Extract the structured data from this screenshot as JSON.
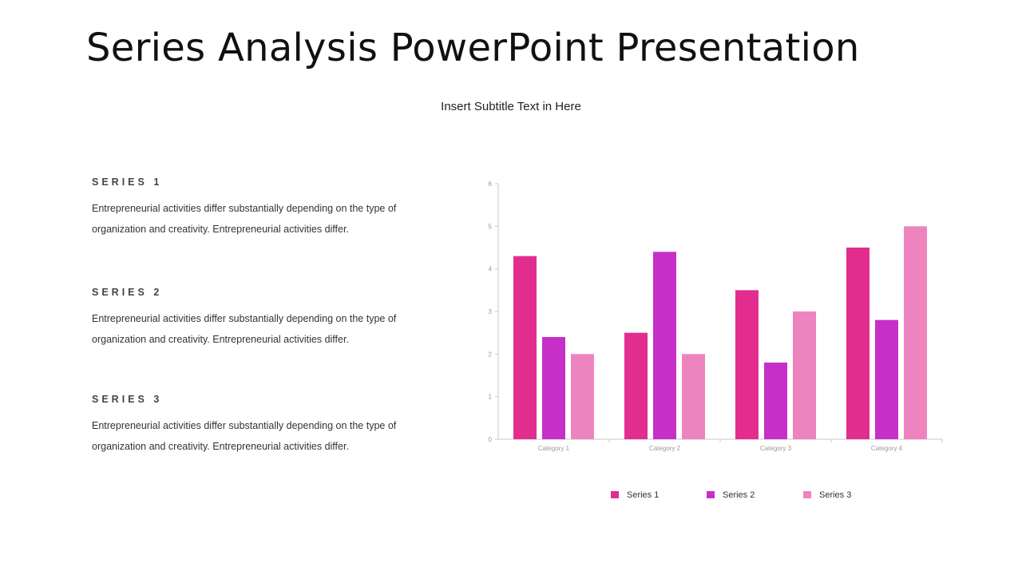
{
  "slide": {
    "title": "Series Analysis PowerPoint Presentation",
    "subtitle": "Insert Subtitle Text in Here"
  },
  "sections": [
    {
      "heading": "SERIES 1",
      "body": "Entrepreneurial activities differ substantially depending on the type of organization and creativity. Entrepreneurial activities differ."
    },
    {
      "heading": "SERIES 2",
      "body": "Entrepreneurial activities differ substantially depending on the type of organization and creativity. Entrepreneurial activities differ."
    },
    {
      "heading": "SERIES 3",
      "body": "Entrepreneurial activities differ substantially depending on the type of organization and creativity. Entrepreneurial activities differ."
    }
  ],
  "chart_data": {
    "type": "bar",
    "categories": [
      "Category 1",
      "Category 2",
      "Category 3",
      "Category 4"
    ],
    "series": [
      {
        "name": "Series 1",
        "values": [
          4.3,
          2.5,
          3.5,
          4.5
        ],
        "color": "#e22d8f"
      },
      {
        "name": "Series 2",
        "values": [
          2.4,
          4.4,
          1.8,
          2.8
        ],
        "color": "#c630c8"
      },
      {
        "name": "Series 3",
        "values": [
          2.0,
          2.0,
          3.0,
          5.0
        ],
        "color": "#ee84bf"
      }
    ],
    "yticks": [
      0,
      1,
      2,
      3,
      4,
      5,
      6
    ],
    "ylim": [
      0,
      6
    ],
    "grid": false,
    "legend": "bottom",
    "title": "",
    "xlabel": "",
    "ylabel": ""
  }
}
